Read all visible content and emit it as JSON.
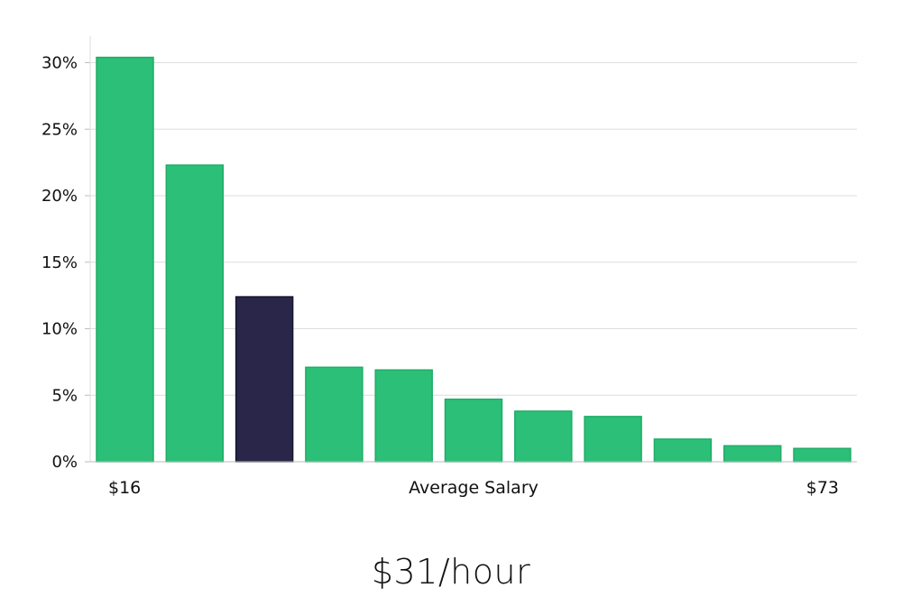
{
  "chart_data": {
    "type": "bar",
    "xlabel": "Average Salary",
    "x_range_labels": {
      "min": "$16",
      "max": "$73"
    },
    "ylim": [
      0,
      32
    ],
    "yticks": [
      0,
      5,
      10,
      15,
      20,
      25,
      30
    ],
    "ytick_format": "{}%",
    "grid": true,
    "series": [
      {
        "values": [
          30.4,
          22.3,
          12.4,
          7.1,
          6.9,
          4.7,
          3.8,
          3.4,
          1.7,
          1.2,
          1.0
        ]
      }
    ],
    "highlight_index": 2,
    "colors": {
      "bar": "#2bbf77",
      "bar_border": "#20ad69",
      "highlight": "#292649",
      "grid": "#dedede",
      "axis": "#bdbdbd"
    }
  },
  "summary": {
    "value_label": "$31/hour"
  }
}
